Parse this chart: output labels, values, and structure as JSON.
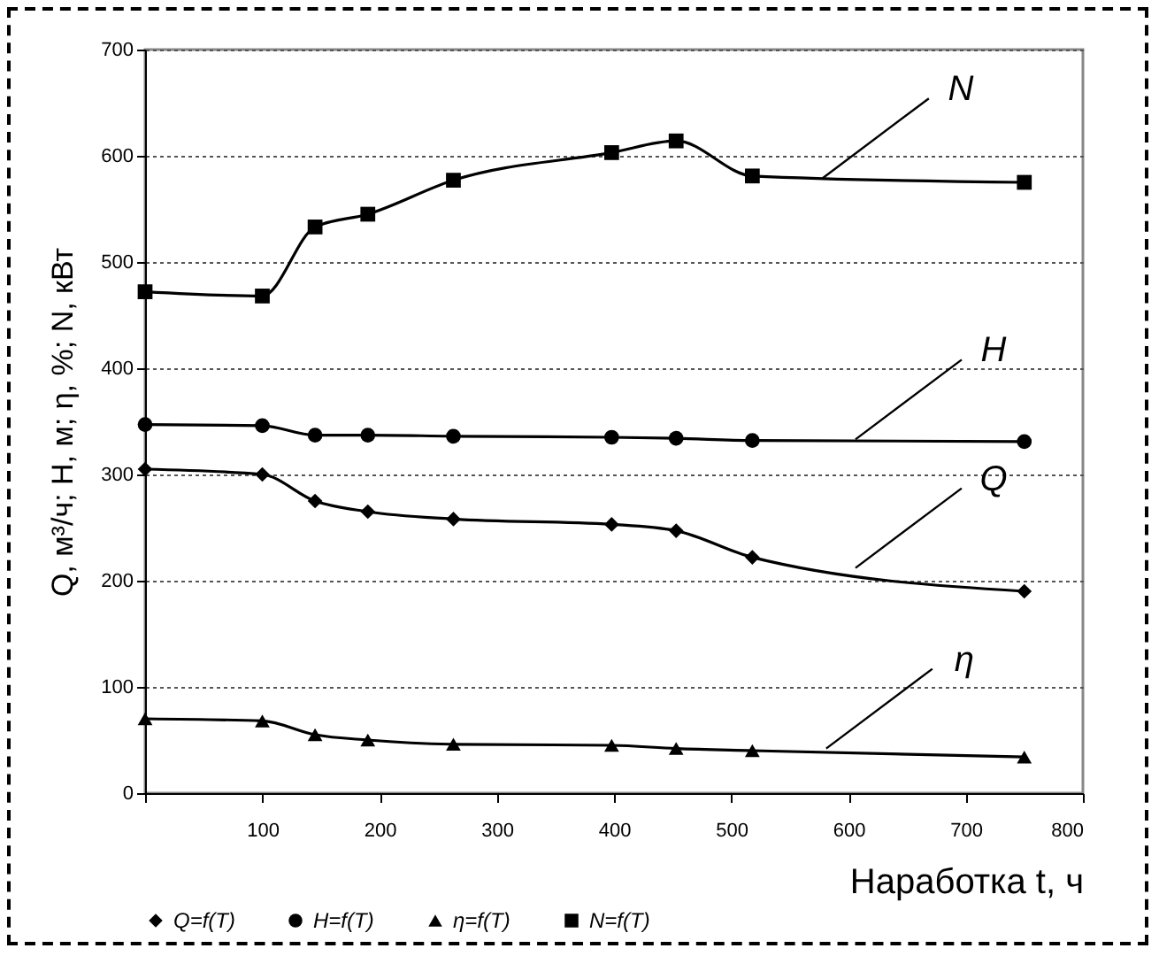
{
  "chart_data": {
    "type": "line",
    "xlabel": "Наработка t, ч",
    "ylabel": "Q, м³/ч; H, м; η, %; N, кВт",
    "x": [
      0,
      100,
      145,
      190,
      263,
      398,
      453,
      518,
      750
    ],
    "series": [
      {
        "name": "Q=f(T)",
        "color": "#000000",
        "marker": "diamond",
        "values": [
          305,
          300,
          275,
          265,
          258,
          253,
          247,
          222,
          190
        ]
      },
      {
        "name": "H=f(T)",
        "color": "#000000",
        "marker": "circle",
        "values": [
          347,
          346,
          337,
          337,
          336,
          335,
          334,
          332,
          331
        ]
      },
      {
        "name": "η=f(T)",
        "color": "#000000",
        "marker": "triangle",
        "values": [
          70,
          68,
          55,
          50,
          46,
          45,
          42,
          40,
          34
        ]
      },
      {
        "name": "N=f(T)",
        "color": "#000000",
        "marker": "square",
        "values": [
          472,
          468,
          533,
          545,
          577,
          603,
          614,
          581,
          575
        ]
      }
    ],
    "xlim": [
      0,
      800
    ],
    "xticks": [
      {
        "value": 0,
        "label": null
      },
      100,
      200,
      300,
      400,
      500,
      600,
      700,
      800
    ],
    "ylim": [
      0,
      700
    ],
    "yticks": [
      0,
      100,
      200,
      300,
      400,
      500,
      600,
      700
    ],
    "grid": "y",
    "legend": "bottom",
    "line_style": "solid",
    "annotations": [
      {
        "text": "N",
        "x": 578,
        "y": 579
      },
      {
        "text": "H",
        "x": 606,
        "y": 333
      },
      {
        "text": "Q",
        "x": 606,
        "y": 212
      },
      {
        "text": "η",
        "x": 581,
        "y": 42
      }
    ]
  }
}
